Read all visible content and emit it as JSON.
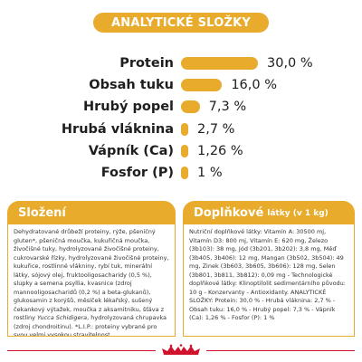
{
  "analytics": {
    "title": "ANALYTICKÉ SLOŽKY",
    "rows": [
      {
        "label": "Protein",
        "value": "30,0 %",
        "percent": 30.0
      },
      {
        "label": "Obsah tuku",
        "value": "16,0 %",
        "percent": 16.0
      },
      {
        "label": "Hrubý popel",
        "value": "7,3 %",
        "percent": 7.3
      },
      {
        "label": "Hrubá vláknina",
        "value": "2,7 %",
        "percent": 2.7
      },
      {
        "label": "Vápník (Ca)",
        "value": "1,26 %",
        "percent": 1.26
      },
      {
        "label": "Fosfor (P)",
        "value": "1 %",
        "percent": 1
      }
    ]
  },
  "composition": {
    "title": "Složení",
    "text_before_italic": "Dehydratované drůbeží proteiny, rýže, pšeničný gluten*, pšeničná moučka, kukuřičná moučka, živočišné tuky, hydrolyzované živočišné proteiny, cukrovarské řízky, hydrolyzované živočišné proteiny, kukuřice, rostlinné vlákniny, rybí tuk, minerální látky, sójový olej, fruktooligosacharidy (0,5 %), slupky a semena psyllia, kvasnice (zdroj mannooligosacharidů (0,2 %) a beta-glukanů), glukosamin z korýšů, měsíček lékařský, sušený čekankový výtažek, moučka z aksamitniku, šťáva z rostliny ",
    "italic": "Yucca Schidigera",
    "text_after_italic": ", hydrolyzovaná chrupavka (zdroj chondroitinu). *L.I.P.: proteiny vybrané pro svou velmi vysokou stravitelnost."
  },
  "additives": {
    "title": "Doplňkové",
    "subtitle": "látky (v 1 kg)",
    "text": "Nutriční doplňkové látky: Vitamín A: 30500 mj, Vitamín D3: 800 mj, Vitamín E: 620 mg, Železo (3b103): 38 mg, Jód (3b201, 3b202): 3,8 mg, Měď (3b405, 3b406): 12 mg, Mangan (3b502, 3b504): 49 mg, Zinek (3b603, 3b605, 3b606): 128 mg, Selen (3b801, 3b811, 3b812): 0,09 mg - Technologické doplňkové látky: Klinoptilolit sedimentárního původu: 10 g - Konzervanty - Antioxidanty. ANALYTICKÉ SLOŽKY: Protein: 30,0 % - Hrubá vláknina: 2,7 % - Obsah tuku: 16,0 % - Hrubý popel: 7,3 % - Vápník (Ca): 1,26 % - Fosfor (P): 1 %"
  },
  "colors": {
    "accent": "#e8ab2b",
    "brand_red": "#d0122c"
  },
  "logo_icon": "royal-canin-crown-icon"
}
